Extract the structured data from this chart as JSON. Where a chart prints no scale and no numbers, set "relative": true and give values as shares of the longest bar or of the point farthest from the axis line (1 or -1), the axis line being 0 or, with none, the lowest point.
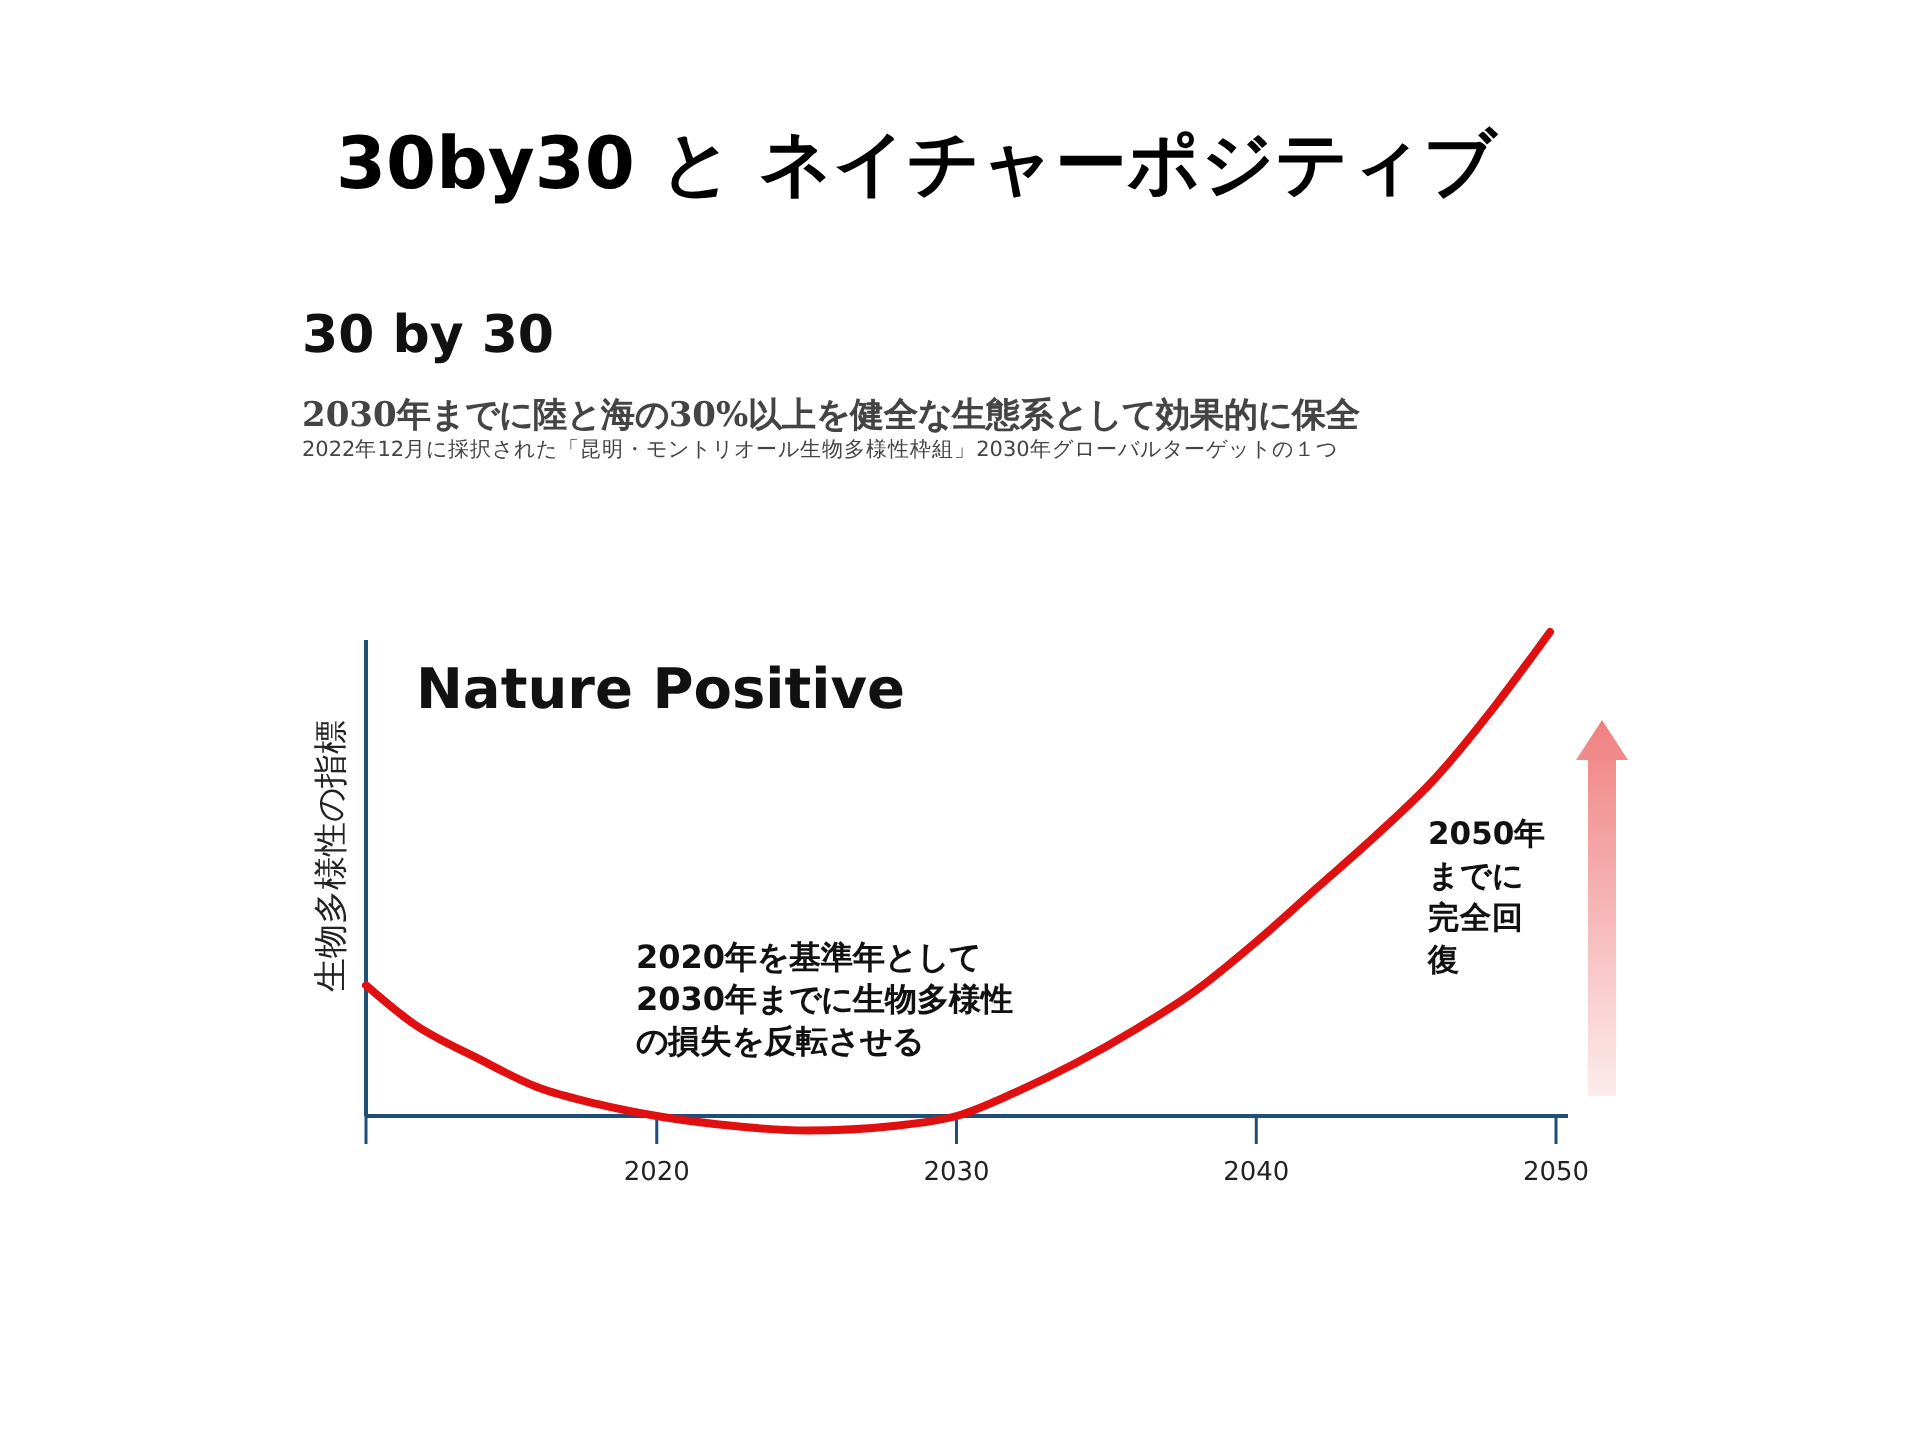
{
  "chart_data": {
    "type": "line",
    "title": "30by30 と ネイチャーポジティブ",
    "ylabel": "生物多様性の指標",
    "relative": true,
    "annotations": [
      "30 by 30",
      "2030年までに陸と海の30%以上を健全な生態系として効果的に保全",
      "2022年12月に採択された「昆明・モントリオール生物多様性枠組」2030年グローバルターゲットの１つ",
      "Nature Positive",
      "2020年を基準年として2030年までに生物多様性の損失を反転させる",
      "2050年までに完全回復"
    ],
    "xlim": [
      2010.3,
      2050.4
    ],
    "xticks": [
      {
        "value": 2010.3,
        "label": null
      },
      2020,
      2030,
      2040,
      2050
    ],
    "series": [
      {
        "color": "#e01010",
        "x": [
          2010.3,
          2011.9,
          2014,
          2016,
          2018,
          2020,
          2022,
          2025,
          2028,
          2030,
          2032,
          2034,
          2036,
          2038,
          2040,
          2042,
          2044,
          2046,
          2048,
          2049.8
        ],
        "values": [
          0.27,
          0.19,
          0.12,
          0.06,
          0.025,
          0,
          -0.017,
          -0.03,
          -0.02,
          0,
          0.05,
          0.11,
          0.18,
          0.26,
          0.36,
          0.47,
          0.58,
          0.7,
          0.85,
          1
        ]
      }
    ]
  }
}
